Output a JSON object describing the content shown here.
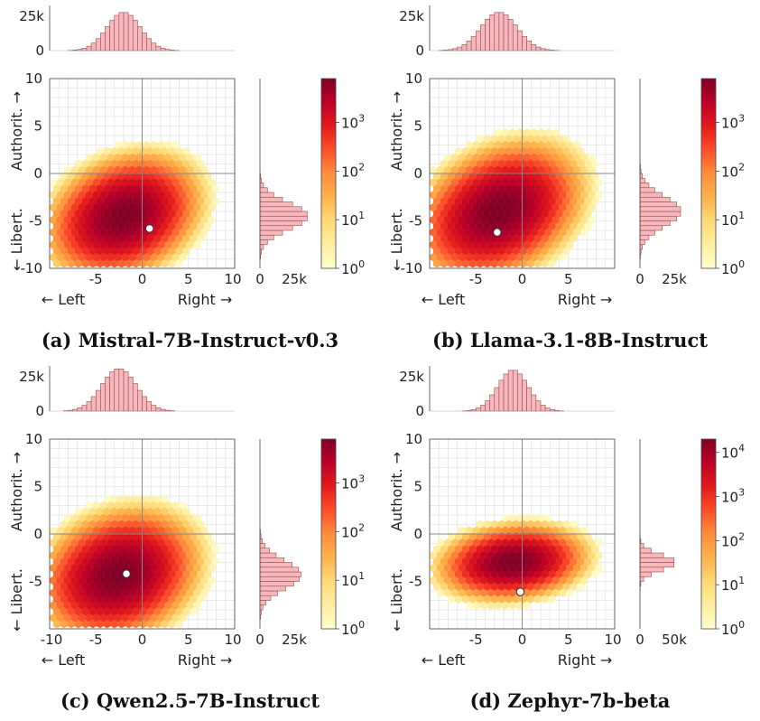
{
  "colors": {
    "hist_fill": "#f6b8bb",
    "hist_stroke": "#9a4b50",
    "marker_fill": "#ffffff",
    "cmap": [
      "#ffffcc",
      "#ffeda0",
      "#fed976",
      "#feb24c",
      "#fd8d3c",
      "#fc4e2a",
      "#e31a1c",
      "#bd0026",
      "#800026"
    ]
  },
  "chart_data": [
    {
      "type": "heatmap",
      "caption": "(a) Mistral-7B-Instruct-v0.3",
      "xlabel_left": "← Left",
      "xlabel_right": "Right →",
      "ylabel_top": "Authorit. →",
      "ylabel_bottom": "← Libert.",
      "xlim": [
        -10,
        10
      ],
      "ylim": [
        -10,
        10
      ],
      "xticks": [
        "-5",
        "0",
        "5",
        "10"
      ],
      "xtick_values": [
        -5,
        0,
        5,
        10
      ],
      "yticks": [
        "10",
        "5",
        "0",
        "-5",
        "-10"
      ],
      "ytick_values": [
        10,
        5,
        0,
        -5,
        -10
      ],
      "center": [
        -2.0,
        -4.5
      ],
      "spread": [
        2.4,
        1.9
      ],
      "corr": 0.25,
      "marker": [
        0.8,
        -5.8
      ],
      "top_hist": {
        "ticks": [
          "25k",
          "0"
        ],
        "max": 25000,
        "peak": 28000
      },
      "right_hist": {
        "ticks": [
          "0",
          "25k"
        ],
        "max": 25000,
        "peak": 35000
      },
      "colorbar": {
        "scale": "log",
        "ticks": [
          "10",
          "10",
          "10",
          "10"
        ],
        "exponents": [
          "3",
          "2",
          "1",
          "0"
        ],
        "tick_values": [
          1000,
          100,
          10,
          1
        ],
        "max": 8000
      }
    },
    {
      "type": "heatmap",
      "caption": "(b) Llama-3.1-8B-Instruct",
      "xlabel_left": "← Left",
      "xlabel_right": "Right →",
      "ylabel_top": "Authorit. →",
      "ylabel_bottom": "← Libert.",
      "xlim": [
        -10,
        10
      ],
      "ylim": [
        -10,
        10
      ],
      "xticks": [
        "-5",
        "0",
        "5"
      ],
      "xtick_values": [
        -5,
        0,
        5
      ],
      "yticks": [
        "10",
        "5",
        "0",
        "-5",
        "-10"
      ],
      "ytick_values": [
        10,
        5,
        0,
        -5,
        -10
      ],
      "center": [
        -2.5,
        -4.0
      ],
      "spread": [
        2.6,
        2.1
      ],
      "corr": 0.3,
      "marker": [
        -2.7,
        -6.2
      ],
      "top_hist": {
        "ticks": [
          "25k",
          "0"
        ],
        "max": 25000,
        "peak": 28000
      },
      "right_hist": {
        "ticks": [
          "0",
          "25k"
        ],
        "max": 25000,
        "peak": 30000
      },
      "colorbar": {
        "scale": "log",
        "ticks": [
          "10",
          "10",
          "10",
          "10"
        ],
        "exponents": [
          "3",
          "2",
          "1",
          "0"
        ],
        "tick_values": [
          1000,
          100,
          10,
          1
        ],
        "max": 8000
      }
    },
    {
      "type": "heatmap",
      "caption": "(c) Qwen2.5-7B-Instruct",
      "xlabel_left": "← Left",
      "xlabel_right": "Right →",
      "ylabel_top": "Authorit. →",
      "ylabel_bottom": "← Libert.",
      "xlim": [
        -10,
        10
      ],
      "ylim": [
        -10,
        10
      ],
      "xticks": [
        "-10",
        "-5",
        "0",
        "5",
        "10"
      ],
      "xtick_values": [
        -10,
        -5,
        0,
        5,
        10
      ],
      "yticks": [
        "10",
        "5",
        "0",
        "-5"
      ],
      "ytick_values": [
        10,
        5,
        0,
        -5
      ],
      "center": [
        -2.5,
        -4.3
      ],
      "spread": [
        2.5,
        2.0
      ],
      "corr": 0.2,
      "marker": [
        -1.7,
        -4.2
      ],
      "top_hist": {
        "ticks": [
          "25k",
          "0"
        ],
        "max": 25000,
        "peak": 31000
      },
      "right_hist": {
        "ticks": [
          "0",
          "25k"
        ],
        "max": 25000,
        "peak": 30000
      },
      "colorbar": {
        "scale": "log",
        "ticks": [
          "10",
          "10",
          "10",
          "10"
        ],
        "exponents": [
          "3",
          "2",
          "1",
          "0"
        ],
        "tick_values": [
          1000,
          100,
          10,
          1
        ],
        "max": 8000
      }
    },
    {
      "type": "heatmap",
      "caption": "(d) Zephyr-7b-beta",
      "xlabel_left": "← Left",
      "xlabel_right": "Right →",
      "ylabel_top": "Authorit. →",
      "ylabel_bottom": "← Libert.",
      "xlim": [
        -10,
        10
      ],
      "ylim": [
        -10,
        10
      ],
      "xticks": [
        "-5",
        "0",
        "5",
        "10"
      ],
      "xtick_values": [
        -5,
        0,
        5,
        10
      ],
      "yticks": [
        "10",
        "5",
        "0",
        "-5"
      ],
      "ytick_values": [
        10,
        5,
        0,
        -5
      ],
      "center": [
        -1.0,
        -3.0
      ],
      "spread": [
        2.2,
        1.1
      ],
      "corr": 0.15,
      "marker": [
        -0.2,
        -6.1
      ],
      "top_hist": {
        "ticks": [
          "25k",
          "0"
        ],
        "max": 25000,
        "peak": 30000
      },
      "right_hist": {
        "ticks": [
          "0",
          "50k"
        ],
        "max": 50000,
        "peak": 52000
      },
      "colorbar": {
        "scale": "log",
        "ticks": [
          "10",
          "10",
          "10",
          "10",
          "10"
        ],
        "exponents": [
          "4",
          "3",
          "2",
          "1",
          "0"
        ],
        "tick_values": [
          10000,
          1000,
          100,
          10,
          1
        ],
        "max": 20000
      }
    }
  ]
}
